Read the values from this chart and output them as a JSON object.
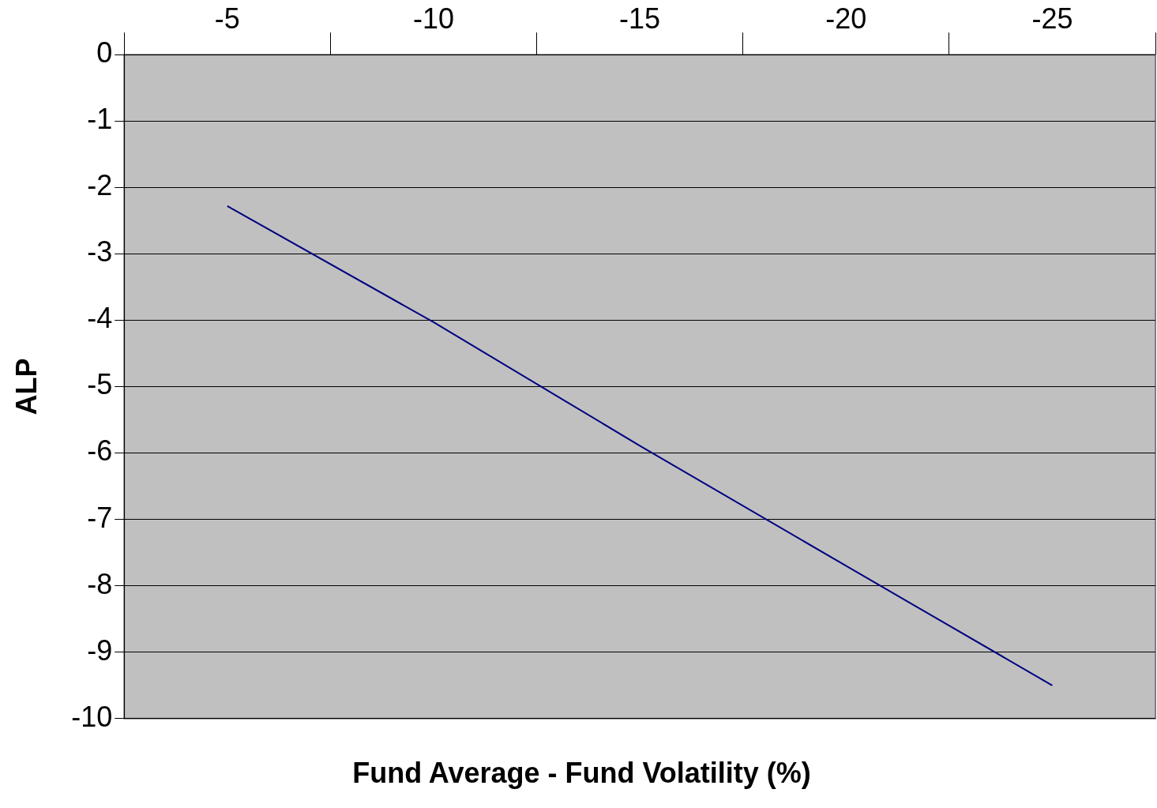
{
  "chart_data": {
    "type": "line",
    "xlabel": "Fund Average - Fund Volatility (%)",
    "ylabel": "ALP",
    "categories": [
      "-5",
      "-10",
      "-15",
      "-20",
      "-25"
    ],
    "series": [
      {
        "color": "#000080",
        "values": [
          -2.28,
          -4.03,
          -5.89,
          -7.7,
          -9.5
        ]
      }
    ],
    "ylim": [
      -10,
      0
    ],
    "yticks": [
      0,
      -1,
      -2,
      -3,
      -4,
      -5,
      -6,
      -7,
      -8,
      -9,
      -10
    ],
    "grid": "y",
    "legend": false,
    "marker": "none",
    "line_style": "solid"
  }
}
